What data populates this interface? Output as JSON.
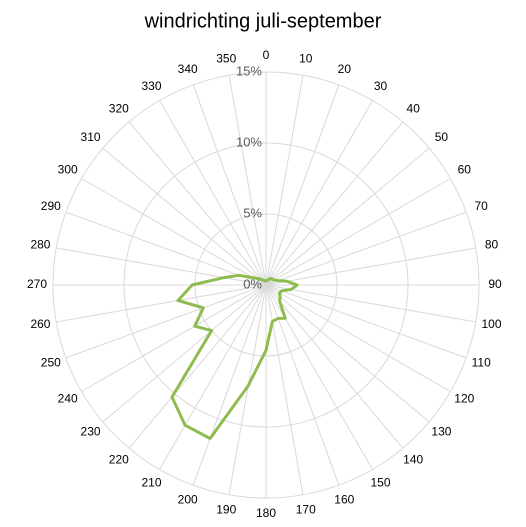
{
  "chart_data": {
    "type": "radar",
    "title": "windrichting juli-september",
    "categories": [
      "0",
      "10",
      "20",
      "30",
      "40",
      "50",
      "60",
      "70",
      "80",
      "90",
      "100",
      "110",
      "120",
      "130",
      "140",
      "150",
      "160",
      "170",
      "180",
      "190",
      "200",
      "210",
      "220",
      "230",
      "240",
      "250",
      "260",
      "270",
      "280",
      "290",
      "300",
      "310",
      "320",
      "330",
      "340",
      "350"
    ],
    "series": [
      {
        "name": "windrichting",
        "color": "#8fbc4e",
        "values": [
          0.3,
          0.3,
          0.4,
          0.5,
          0.6,
          0.6,
          0.7,
          0.9,
          1.5,
          2.2,
          1.8,
          1.2,
          1.1,
          1.3,
          1.5,
          2.7,
          2.5,
          2.6,
          4.6,
          7.2,
          11.5,
          11.4,
          10.3,
          5.0,
          5.8,
          4.7,
          6.3,
          5.2,
          3.0,
          2.0,
          1.0,
          0.7,
          0.5,
          0.4,
          0.3,
          0.3
        ]
      }
    ],
    "ylim": [
      0,
      15
    ],
    "yticks": [
      {
        "value": 0,
        "label": "0%"
      },
      {
        "value": 5,
        "label": "5%"
      },
      {
        "value": 10,
        "label": "10%"
      },
      {
        "value": 15,
        "label": "15%"
      }
    ],
    "grid": true
  }
}
